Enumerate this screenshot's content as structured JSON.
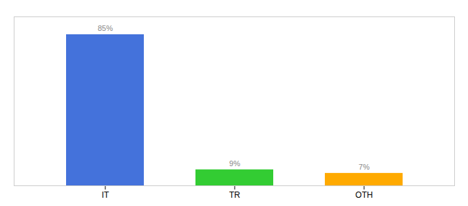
{
  "chart_data": {
    "type": "bar",
    "categories": [
      "IT",
      "TR",
      "OTH"
    ],
    "values": [
      85,
      9,
      7
    ],
    "value_labels": [
      "85%",
      "9%",
      "7%"
    ],
    "colors": [
      "#4472db",
      "#33cc33",
      "#ffaa00"
    ],
    "ylim": [
      0,
      95
    ],
    "data_labels": true,
    "tick_labels": "x",
    "grid": false
  }
}
